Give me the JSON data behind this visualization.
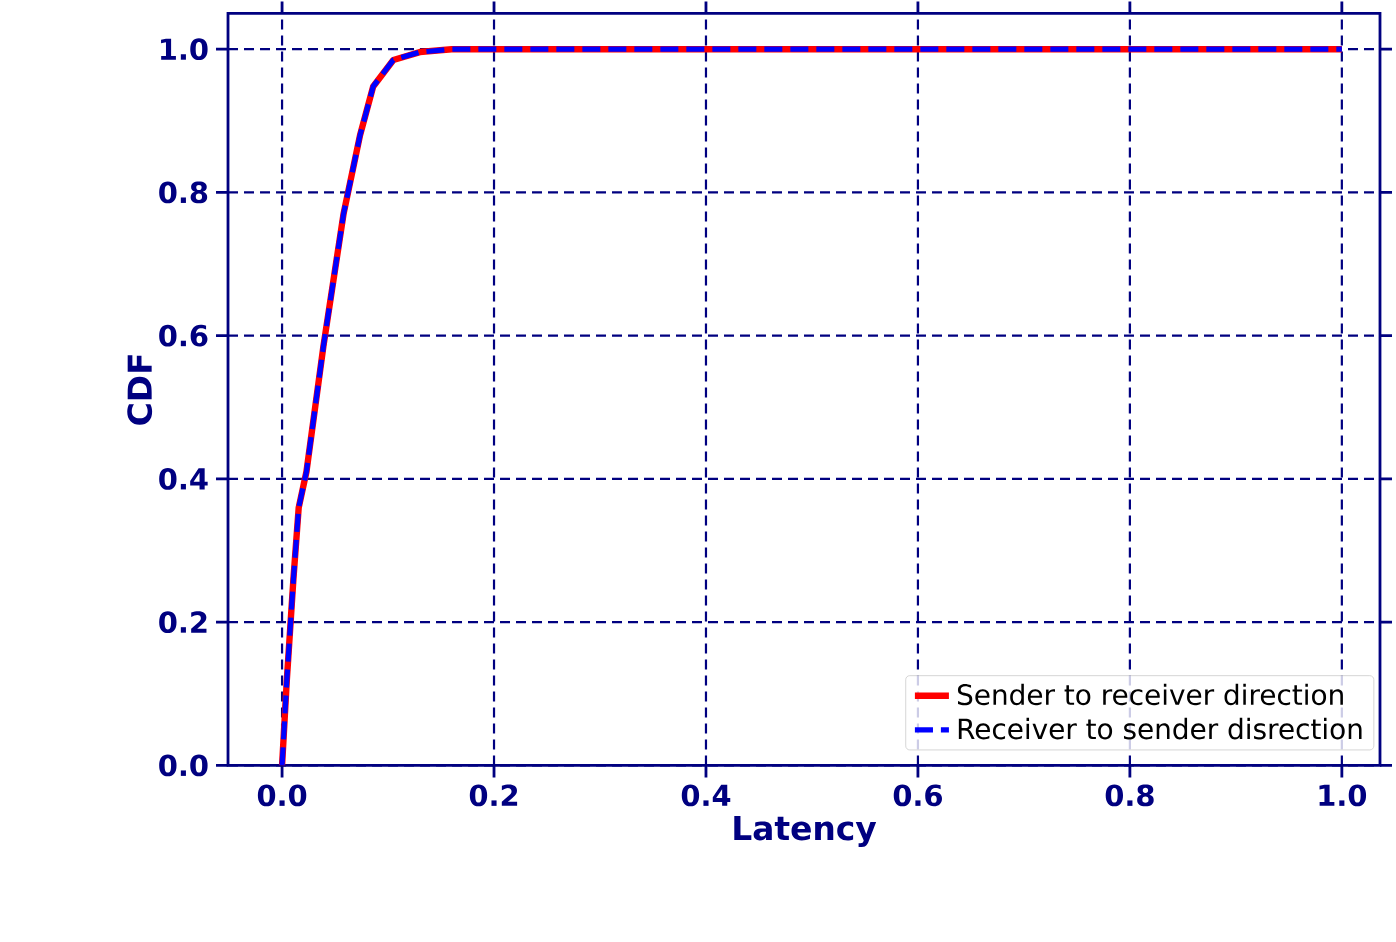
{
  "chart_data": {
    "type": "line",
    "xlabel": "Latency",
    "ylabel": "CDF",
    "x": [
      0,
      0.0044,
      0.0107,
      0.0157,
      0.023,
      0.039,
      0.058,
      0.0736,
      0.086,
      0.105,
      0.13,
      0.16,
      0.2,
      0.4,
      0.6,
      0.8,
      1.0
    ],
    "series": [
      {
        "name": "Sender to receiver direction",
        "color": "#ff0000",
        "line_style": "solid",
        "values": [
          0,
          0.117,
          0.26,
          0.36,
          0.41,
          0.585,
          0.77,
          0.88,
          0.948,
          0.985,
          0.996,
          1.0,
          1.0,
          1.0,
          1.0,
          1.0,
          1.0
        ]
      },
      {
        "name": "Receiver to sender disrection",
        "color": "#0000ff",
        "line_style": "dashed",
        "values": [
          0,
          0.117,
          0.26,
          0.36,
          0.41,
          0.585,
          0.77,
          0.88,
          0.948,
          0.985,
          0.996,
          1.0,
          1.0,
          1.0,
          1.0,
          1.0,
          1.0
        ]
      }
    ],
    "xlim": [
      -0.051,
      1.036
    ],
    "ylim": [
      0,
      1.05
    ],
    "xticks": [
      {
        "value": 0,
        "label": "0.0"
      },
      {
        "value": 0.2,
        "label": "0.2"
      },
      {
        "value": 0.4,
        "label": "0.4"
      },
      {
        "value": 0.6,
        "label": "0.6"
      },
      {
        "value": 0.8,
        "label": "0.8"
      },
      {
        "value": 1.0,
        "label": "1.0"
      }
    ],
    "yticks": [
      {
        "value": 0,
        "label": "0.0"
      },
      {
        "value": 0.2,
        "label": "0.2"
      },
      {
        "value": 0.4,
        "label": "0.4"
      },
      {
        "value": 0.6,
        "label": "0.6"
      },
      {
        "value": 0.8,
        "label": "0.8"
      },
      {
        "value": 1.0,
        "label": "1.0"
      }
    ],
    "grid": true,
    "legend": "bottom right",
    "marker": "none"
  }
}
